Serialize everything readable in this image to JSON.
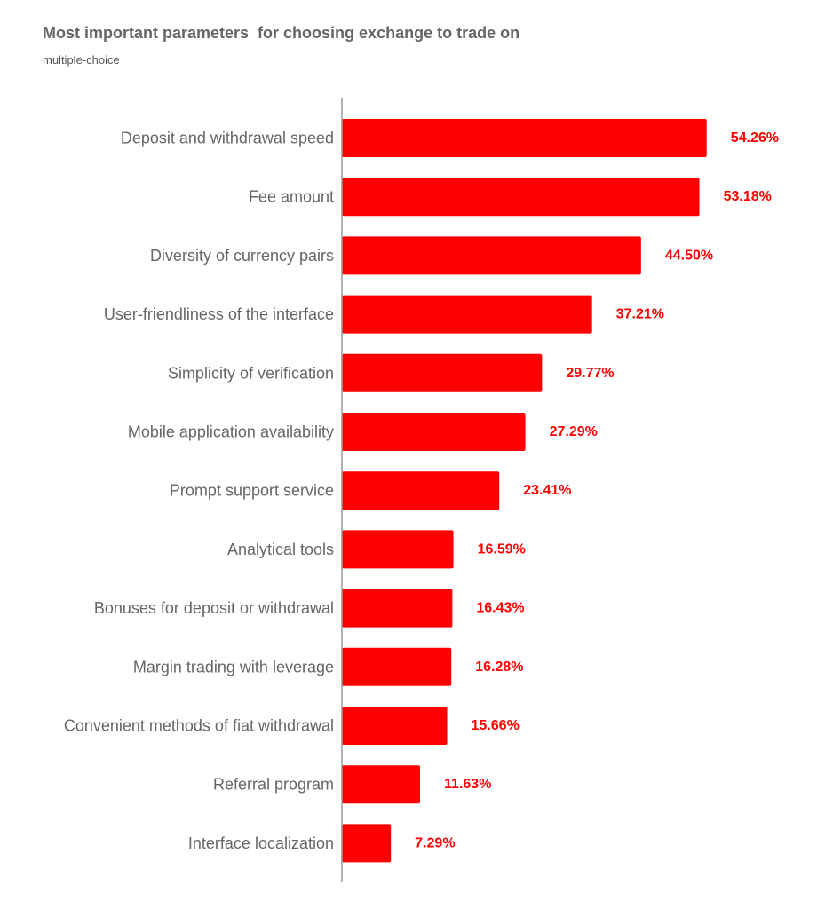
{
  "chart_data": {
    "type": "bar",
    "orientation": "horizontal",
    "title": "Most important parameters  for choosing exchange to trade on",
    "subtitle": "multiple-choice",
    "categories": [
      "Deposit and withdrawal speed",
      "Fee amount",
      "Diversity of currency pairs",
      "User-friendliness of the interface",
      "Simplicity of verification",
      "Mobile application availability",
      "Prompt support service",
      "Analytical tools",
      "Bonuses for deposit or withdrawal",
      "Margin trading with leverage",
      "Convenient methods of fiat withdrawal",
      "Referral program",
      "Interface localization"
    ],
    "values": [
      54.26,
      53.18,
      44.5,
      37.21,
      29.77,
      27.29,
      23.41,
      16.59,
      16.43,
      16.28,
      15.66,
      11.63,
      7.29
    ],
    "value_labels": [
      "54.26%",
      "53.18%",
      "44.50%",
      "37.21%",
      "29.77%",
      "27.29%",
      "23.41%",
      "16.59%",
      "16.43%",
      "16.28%",
      "15.66%",
      "11.63%",
      "7.29%"
    ],
    "grid": false,
    "legend": "none"
  },
  "colors": {
    "bar": "#ff0000",
    "value_label": "#ff0000",
    "category_label": "#666666",
    "axis": "#999999"
  }
}
